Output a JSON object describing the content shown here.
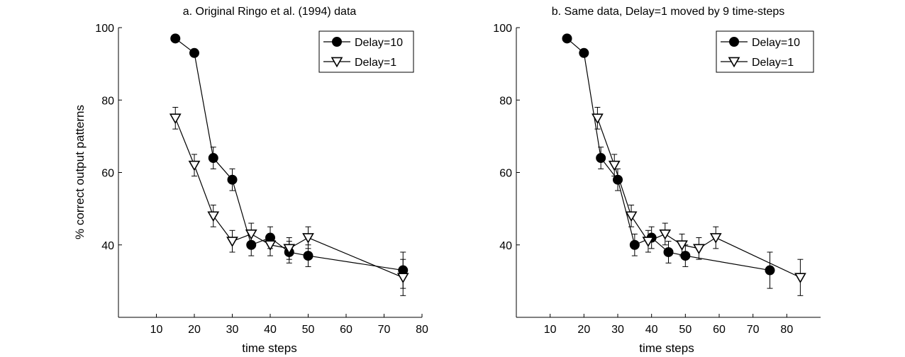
{
  "chart_data": [
    {
      "type": "line",
      "title": "a. Original Ringo et al. (1994) data",
      "xlabel": "time steps",
      "ylabel": "% correct output patterns",
      "xlim": [
        0,
        80
      ],
      "ylim": [
        20,
        100
      ],
      "xticks": [
        10,
        20,
        30,
        40,
        50,
        60,
        70,
        80
      ],
      "yticks": [
        40,
        60,
        80,
        100
      ],
      "legend": "top-right",
      "series": [
        {
          "name": "Delay=10",
          "marker": "filled-circle",
          "points": [
            {
              "x": 15,
              "y": 97,
              "err": 0
            },
            {
              "x": 20,
              "y": 93,
              "err": 0
            },
            {
              "x": 25,
              "y": 64,
              "err": 3
            },
            {
              "x": 30,
              "y": 58,
              "err": 3
            },
            {
              "x": 35,
              "y": 40,
              "err": 3
            },
            {
              "x": 40,
              "y": 42,
              "err": 3
            },
            {
              "x": 45,
              "y": 38,
              "err": 3
            },
            {
              "x": 50,
              "y": 37,
              "err": 3
            },
            {
              "x": 75,
              "y": 33,
              "err": 5
            }
          ]
        },
        {
          "name": "Delay=1",
          "marker": "open-triangle-down",
          "points": [
            {
              "x": 15,
              "y": 75,
              "err": 3
            },
            {
              "x": 20,
              "y": 62,
              "err": 3
            },
            {
              "x": 25,
              "y": 48,
              "err": 3
            },
            {
              "x": 30,
              "y": 41,
              "err": 3
            },
            {
              "x": 35,
              "y": 43,
              "err": 3
            },
            {
              "x": 40,
              "y": 40,
              "err": 3
            },
            {
              "x": 45,
              "y": 39,
              "err": 3
            },
            {
              "x": 50,
              "y": 42,
              "err": 3
            },
            {
              "x": 75,
              "y": 31,
              "err": 5
            }
          ]
        }
      ]
    },
    {
      "type": "line",
      "title": "b. Same data, Delay=1 moved by 9 time-steps",
      "xlabel": "time steps",
      "ylabel": "",
      "xlim": [
        0,
        90
      ],
      "ylim": [
        20,
        100
      ],
      "xticks": [
        10,
        20,
        30,
        40,
        50,
        60,
        70,
        80
      ],
      "yticks": [
        40,
        60,
        80,
        100
      ],
      "legend": "top-right",
      "series": [
        {
          "name": "Delay=10",
          "marker": "filled-circle",
          "points": [
            {
              "x": 15,
              "y": 97,
              "err": 0
            },
            {
              "x": 20,
              "y": 93,
              "err": 0
            },
            {
              "x": 25,
              "y": 64,
              "err": 3
            },
            {
              "x": 30,
              "y": 58,
              "err": 3
            },
            {
              "x": 35,
              "y": 40,
              "err": 3
            },
            {
              "x": 40,
              "y": 42,
              "err": 3
            },
            {
              "x": 45,
              "y": 38,
              "err": 3
            },
            {
              "x": 50,
              "y": 37,
              "err": 3
            },
            {
              "x": 75,
              "y": 33,
              "err": 5
            }
          ]
        },
        {
          "name": "Delay=1",
          "marker": "open-triangle-down",
          "points": [
            {
              "x": 24,
              "y": 75,
              "err": 3
            },
            {
              "x": 29,
              "y": 62,
              "err": 3
            },
            {
              "x": 34,
              "y": 48,
              "err": 3
            },
            {
              "x": 39,
              "y": 41,
              "err": 3
            },
            {
              "x": 44,
              "y": 43,
              "err": 3
            },
            {
              "x": 49,
              "y": 40,
              "err": 3
            },
            {
              "x": 54,
              "y": 39,
              "err": 3
            },
            {
              "x": 59,
              "y": 42,
              "err": 3
            },
            {
              "x": 84,
              "y": 31,
              "err": 5
            }
          ]
        }
      ]
    }
  ]
}
